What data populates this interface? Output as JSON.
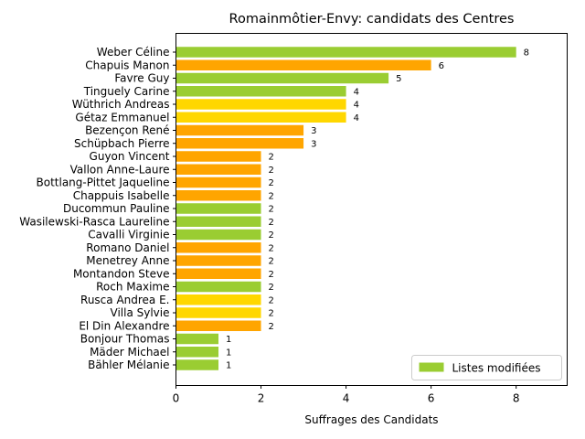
{
  "chart_data": {
    "type": "bar",
    "orientation": "horizontal",
    "title": "Romainmôtier-Envy: candidats des Centres",
    "xlabel": "Suffrages des Candidats",
    "ylabel": "",
    "xlim": [
      0,
      9.2
    ],
    "xticks": [
      "0",
      "2",
      "4",
      "6",
      "8"
    ],
    "grid": false,
    "legend_position": "lower-right",
    "legend_entries": [
      {
        "label": "Listes modifiées",
        "color": "#9acd32"
      }
    ],
    "categories": [
      "Weber Céline",
      "Chapuis Manon",
      "Favre Guy",
      "Tinguely Carine",
      "Wüthrich Andreas",
      "Gétaz Emmanuel",
      "Bezençon René",
      "Schüpbach Pierre",
      "Guyon Vincent",
      "Vallon Anne-Laure",
      "Bottlang-Pittet Jaqueline",
      "Chappuis Isabelle",
      "Ducommun Pauline",
      "Wasilewski-Rasca Laureline",
      "Cavalli Virginie",
      "Romano Daniel",
      "Menetrey Anne",
      "Montandon Steve",
      "Roch Maxime",
      "Rusca Andrea E.",
      "Villa Sylvie",
      "El Din Alexandre",
      "Bonjour Thomas",
      "Mäder Michael",
      "Bähler Mélanie"
    ],
    "values": [
      8,
      6,
      5,
      4,
      4,
      4,
      3,
      3,
      2,
      2,
      2,
      2,
      2,
      2,
      2,
      2,
      2,
      2,
      2,
      2,
      2,
      2,
      1,
      1,
      1
    ],
    "value_labels": [
      "8",
      "6",
      "5",
      "4",
      "4",
      "4",
      "3",
      "3",
      "2",
      "2",
      "2",
      "2",
      "2",
      "2",
      "2",
      "2",
      "2",
      "2",
      "2",
      "2",
      "2",
      "2",
      "1",
      "1",
      "1"
    ],
    "colors": [
      "#9acd32",
      "#ffa500",
      "#9acd32",
      "#9acd32",
      "#ffd700",
      "#ffd700",
      "#ffa500",
      "#ffa500",
      "#ffa500",
      "#ffa500",
      "#ffa500",
      "#ffa500",
      "#9acd32",
      "#9acd32",
      "#9acd32",
      "#ffa500",
      "#ffa500",
      "#ffa500",
      "#9acd32",
      "#ffd700",
      "#ffd700",
      "#ffa500",
      "#9acd32",
      "#9acd32",
      "#9acd32"
    ]
  }
}
